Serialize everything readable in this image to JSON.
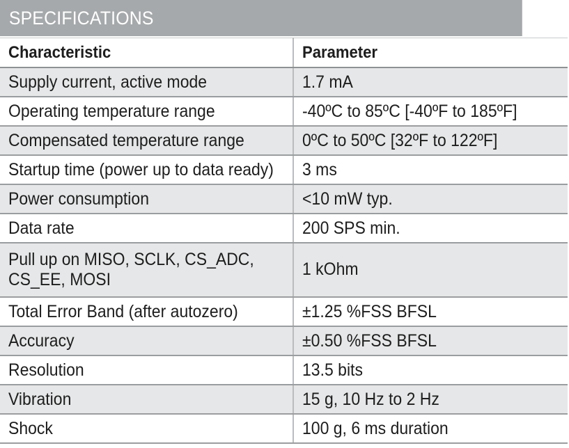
{
  "section": {
    "title": "SPECIFICATIONS"
  },
  "table": {
    "headers": [
      "Characteristic",
      "Parameter"
    ],
    "rows": [
      {
        "characteristic": "Supply current, active mode",
        "parameter": "1.7 mA"
      },
      {
        "characteristic": "Operating temperature range",
        "parameter": "-40ºC to 85ºC [-40ºF to 185ºF]"
      },
      {
        "characteristic": "Compensated temperature range",
        "parameter": "0ºC to 50ºC [32ºF to 122ºF]"
      },
      {
        "characteristic": "Startup time (power up to data ready)",
        "parameter": "3 ms"
      },
      {
        "characteristic": "Power consumption",
        "parameter": "<10 mW typ."
      },
      {
        "characteristic": "Data rate",
        "parameter": "200 SPS min."
      },
      {
        "characteristic": "Pull up on MISO, SCLK, CS_ADC, CS_EE, MOSI",
        "parameter": "1 kOhm"
      },
      {
        "characteristic": "Total Error Band (after autozero)",
        "parameter": "±1.25 %FSS BFSL"
      },
      {
        "characteristic": "Accuracy",
        "parameter": "±0.50 %FSS BFSL"
      },
      {
        "characteristic": "Resolution",
        "parameter": "13.5 bits"
      },
      {
        "characteristic": "Vibration",
        "parameter": "15 g, 10 Hz to 2 Hz"
      },
      {
        "characteristic": "Shock",
        "parameter": "100 g, 6 ms duration"
      }
    ]
  },
  "colors": {
    "banner_bg": "#a6a9ab",
    "row_shade": "#e6e7e8",
    "text": "#1d1d1d"
  }
}
